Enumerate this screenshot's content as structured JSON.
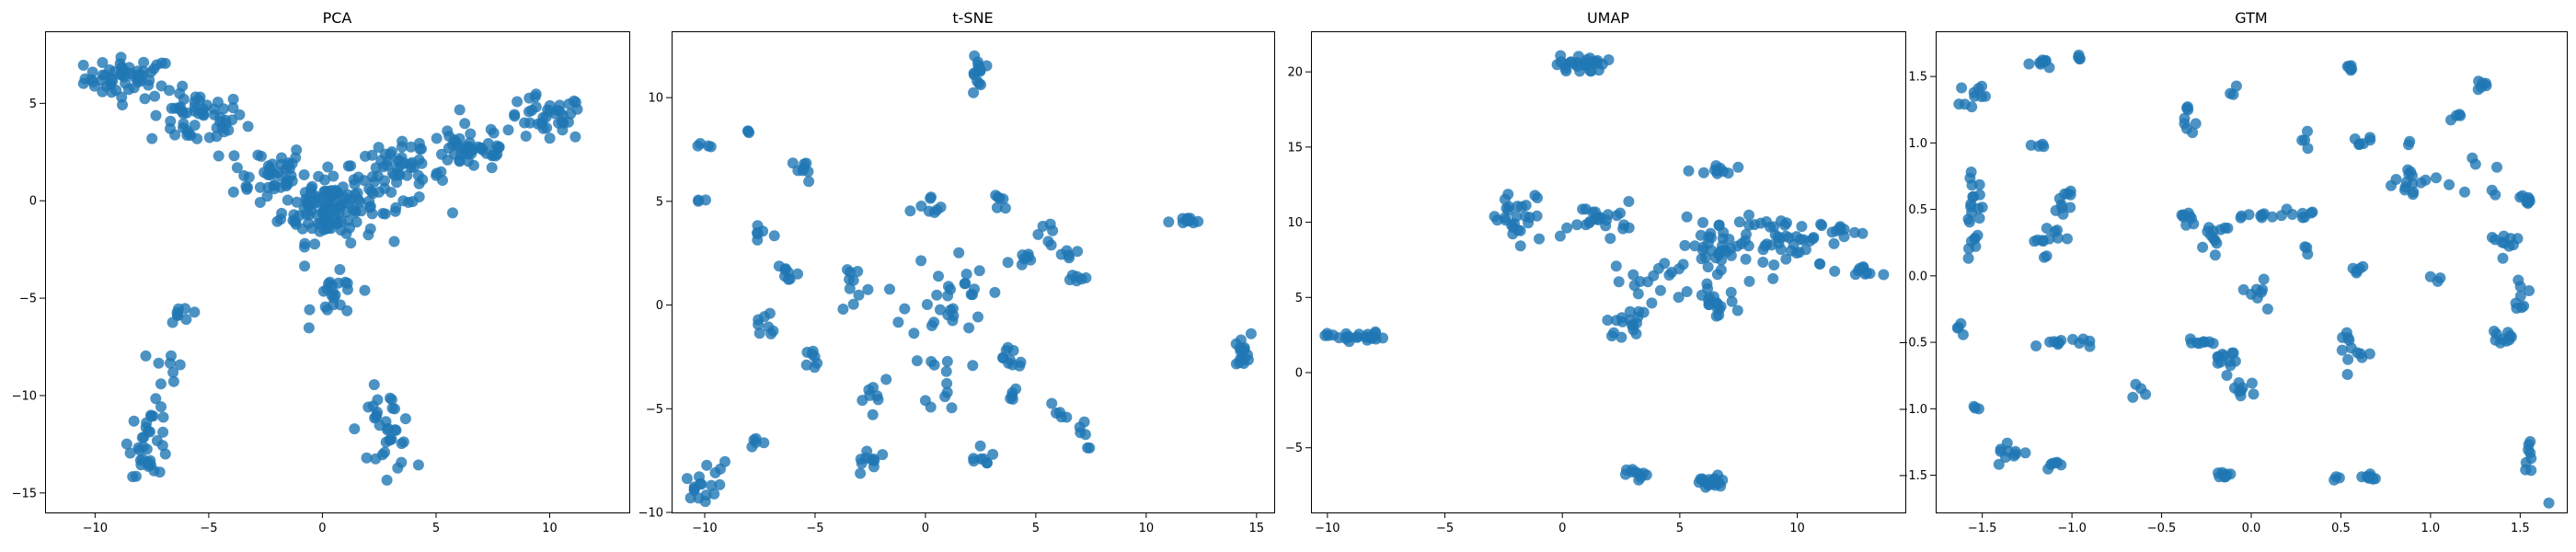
{
  "figure": {
    "point_color": "#1f77b4",
    "point_opacity": 0.8
  },
  "chart_data": [
    {
      "type": "scatter",
      "title": "PCA",
      "xlim": [
        -12.2,
        13.5
      ],
      "ylim": [
        -16.0,
        8.7
      ],
      "xticks": [
        -10,
        -5,
        0,
        5,
        10
      ],
      "yticks": [
        -15,
        -10,
        -5,
        0,
        5
      ],
      "clusters": [
        {
          "cx": -8.5,
          "cy": 6.3,
          "sx": 1.3,
          "sy": 0.7,
          "n": 55
        },
        {
          "cx": -5.5,
          "cy": 4.2,
          "sx": 1.4,
          "sy": 0.9,
          "n": 55
        },
        {
          "cx": -2.5,
          "cy": 1.5,
          "sx": 1.2,
          "sy": 1.0,
          "n": 40
        },
        {
          "cx": 0.3,
          "cy": -0.3,
          "sx": 1.4,
          "sy": 1.2,
          "n": 130
        },
        {
          "cx": 3.2,
          "cy": 1.3,
          "sx": 1.5,
          "sy": 1.0,
          "n": 60
        },
        {
          "cx": 6.5,
          "cy": 2.7,
          "sx": 1.4,
          "sy": 0.8,
          "n": 50
        },
        {
          "cx": 9.8,
          "cy": 4.2,
          "sx": 1.2,
          "sy": 0.8,
          "n": 40
        },
        {
          "cx": 0.6,
          "cy": -5.0,
          "sx": 0.7,
          "sy": 0.8,
          "n": 22
        },
        {
          "cx": -6.0,
          "cy": -5.8,
          "sx": 0.5,
          "sy": 0.6,
          "n": 8
        },
        {
          "cx": -6.7,
          "cy": -8.5,
          "sx": 0.5,
          "sy": 0.7,
          "n": 8
        },
        {
          "cx": -7.6,
          "cy": -12.3,
          "sx": 0.6,
          "sy": 1.2,
          "n": 35
        },
        {
          "cx": 2.8,
          "cy": -11.8,
          "sx": 0.8,
          "sy": 1.4,
          "n": 35
        }
      ]
    },
    {
      "type": "scatter",
      "title": "t-SNE",
      "xlim": [
        -11.5,
        15.8
      ],
      "ylim": [
        -10.0,
        13.2
      ],
      "xticks": [
        -10,
        -5,
        0,
        5,
        10,
        15
      ],
      "yticks": [
        -10,
        -5,
        0,
        5,
        10
      ],
      "clusters": [
        {
          "cx": 2.3,
          "cy": 11.0,
          "sx": 0.2,
          "sy": 0.9,
          "n": 14
        },
        {
          "cx": -10.2,
          "cy": -8.8,
          "sx": 0.5,
          "sy": 0.4,
          "n": 14
        },
        {
          "cx": 14.3,
          "cy": -2.3,
          "sx": 0.3,
          "sy": 0.6,
          "n": 16
        },
        {
          "cx": 11.8,
          "cy": 4.0,
          "sx": 0.5,
          "sy": 0.15,
          "n": 10
        },
        {
          "cx": -8.0,
          "cy": 8.3,
          "sx": 0.1,
          "sy": 0.1,
          "n": 3
        },
        {
          "cx": -10.0,
          "cy": 7.7,
          "sx": 0.2,
          "sy": 0.1,
          "n": 4
        },
        {
          "cx": -10.2,
          "cy": 5.0,
          "sx": 0.2,
          "sy": 0.1,
          "n": 3
        },
        {
          "cx": -5.5,
          "cy": 6.5,
          "sx": 0.4,
          "sy": 0.4,
          "n": 8
        },
        {
          "cx": -7.5,
          "cy": 3.5,
          "sx": 0.5,
          "sy": 0.5,
          "n": 6
        },
        {
          "cx": -6.3,
          "cy": 1.5,
          "sx": 0.4,
          "sy": 0.6,
          "n": 8
        },
        {
          "cx": -7.2,
          "cy": -1.0,
          "sx": 0.5,
          "sy": 0.6,
          "n": 8
        },
        {
          "cx": -5.0,
          "cy": -2.6,
          "sx": 0.3,
          "sy": 0.4,
          "n": 7
        },
        {
          "cx": -7.8,
          "cy": -6.5,
          "sx": 0.3,
          "sy": 0.3,
          "n": 5
        },
        {
          "cx": -3.2,
          "cy": 1.0,
          "sx": 0.5,
          "sy": 1.0,
          "n": 10
        },
        {
          "cx": -2.3,
          "cy": -4.0,
          "sx": 0.6,
          "sy": 0.6,
          "n": 8
        },
        {
          "cx": -2.5,
          "cy": -7.5,
          "sx": 0.5,
          "sy": 0.5,
          "n": 10
        },
        {
          "cx": 0.3,
          "cy": 4.5,
          "sx": 0.7,
          "sy": 0.5,
          "n": 8
        },
        {
          "cx": 1.0,
          "cy": 0.5,
          "sx": 1.2,
          "sy": 1.5,
          "n": 30
        },
        {
          "cx": 1.0,
          "cy": -3.5,
          "sx": 0.7,
          "sy": 1.0,
          "n": 12
        },
        {
          "cx": 2.5,
          "cy": -7.0,
          "sx": 0.4,
          "sy": 0.6,
          "n": 8
        },
        {
          "cx": 3.3,
          "cy": 4.8,
          "sx": 0.3,
          "sy": 0.5,
          "n": 6
        },
        {
          "cx": 4.2,
          "cy": 2.2,
          "sx": 0.6,
          "sy": 0.3,
          "n": 7
        },
        {
          "cx": 3.8,
          "cy": -2.5,
          "sx": 0.6,
          "sy": 0.6,
          "n": 10
        },
        {
          "cx": 3.9,
          "cy": -4.4,
          "sx": 0.4,
          "sy": 0.2,
          "n": 5
        },
        {
          "cx": 5.3,
          "cy": 3.5,
          "sx": 0.3,
          "sy": 0.3,
          "n": 5
        },
        {
          "cx": 6.0,
          "cy": 2.5,
          "sx": 0.5,
          "sy": 0.3,
          "n": 6
        },
        {
          "cx": 6.8,
          "cy": 1.2,
          "sx": 0.4,
          "sy": 0.3,
          "n": 6
        },
        {
          "cx": 6.0,
          "cy": -5.2,
          "sx": 0.3,
          "sy": 0.4,
          "n": 5
        },
        {
          "cx": 7.1,
          "cy": -6.2,
          "sx": 0.3,
          "sy": 0.5,
          "n": 6
        },
        {
          "cx": -9.5,
          "cy": -7.8,
          "sx": 0.3,
          "sy": 0.3,
          "n": 4
        }
      ]
    },
    {
      "type": "scatter",
      "title": "UMAP",
      "xlim": [
        -10.7,
        14.6
      ],
      "ylim": [
        -9.3,
        22.7
      ],
      "xticks": [
        -10,
        -5,
        0,
        5,
        10
      ],
      "yticks": [
        -5,
        0,
        5,
        10,
        15,
        20
      ],
      "clusters": [
        {
          "cx": 0.8,
          "cy": 20.5,
          "sx": 0.7,
          "sy": 0.4,
          "n": 28
        },
        {
          "cx": -8.8,
          "cy": 2.4,
          "sx": 0.8,
          "sy": 0.2,
          "n": 24
        },
        {
          "cx": 6.3,
          "cy": -7.3,
          "sx": 0.5,
          "sy": 0.3,
          "n": 22
        },
        {
          "cx": 3.2,
          "cy": -6.8,
          "sx": 0.3,
          "sy": 0.3,
          "n": 10
        },
        {
          "cx": -1.8,
          "cy": 10.0,
          "sx": 1.0,
          "sy": 1.3,
          "n": 28
        },
        {
          "cx": 1.7,
          "cy": 10.3,
          "sx": 0.9,
          "sy": 0.7,
          "n": 24
        },
        {
          "cx": 4.0,
          "cy": 6.0,
          "sx": 1.2,
          "sy": 1.2,
          "n": 20
        },
        {
          "cx": 2.8,
          "cy": 3.3,
          "sx": 0.6,
          "sy": 0.6,
          "n": 16
        },
        {
          "cx": 6.5,
          "cy": 4.6,
          "sx": 0.6,
          "sy": 0.6,
          "n": 16
        },
        {
          "cx": 6.5,
          "cy": 13.3,
          "sx": 0.5,
          "sy": 0.4,
          "n": 10
        },
        {
          "cx": 6.5,
          "cy": 8.5,
          "sx": 1.0,
          "sy": 1.1,
          "n": 34
        },
        {
          "cx": 9.6,
          "cy": 8.6,
          "sx": 1.6,
          "sy": 1.2,
          "n": 48
        },
        {
          "cx": 13.0,
          "cy": 6.7,
          "sx": 0.5,
          "sy": 0.3,
          "n": 10
        },
        {
          "cx": 11.8,
          "cy": 9.5,
          "sx": 0.5,
          "sy": 0.3,
          "n": 10
        }
      ]
    },
    {
      "type": "scatter",
      "title": "GTM",
      "xlim": [
        -1.76,
        1.76
      ],
      "ylim": [
        -1.78,
        1.84
      ],
      "xticks": [
        -1.5,
        -1.0,
        -0.5,
        0.0,
        0.5,
        1.0,
        1.5
      ],
      "xticklabels": [
        "−1.5",
        "−1.0",
        "−0.5",
        "0.0",
        "0.5",
        "1.0",
        "1.5"
      ],
      "yticks": [
        -1.5,
        -1.0,
        -0.5,
        0.0,
        0.5,
        1.0,
        1.5
      ],
      "yticklabels": [
        "−1.5",
        "−1.0",
        "−0.5",
        "0.0",
        "0.5",
        "1.0",
        "1.5"
      ],
      "clusters": [
        {
          "cx": -1.55,
          "cy": 1.37,
          "sx": 0.05,
          "sy": 0.06,
          "n": 10
        },
        {
          "cx": -1.55,
          "cy": 0.45,
          "sx": 0.04,
          "sy": 0.2,
          "n": 22
        },
        {
          "cx": -1.62,
          "cy": -0.38,
          "sx": 0.02,
          "sy": 0.05,
          "n": 4
        },
        {
          "cx": -1.52,
          "cy": -1.0,
          "sx": 0.02,
          "sy": 0.02,
          "n": 3
        },
        {
          "cx": -1.35,
          "cy": -1.33,
          "sx": 0.06,
          "sy": 0.04,
          "n": 10
        },
        {
          "cx": -1.1,
          "cy": -1.42,
          "sx": 0.04,
          "sy": 0.02,
          "n": 6
        },
        {
          "cx": -1.15,
          "cy": 1.6,
          "sx": 0.05,
          "sy": 0.03,
          "n": 8
        },
        {
          "cx": -0.95,
          "cy": 1.64,
          "sx": 0.03,
          "sy": 0.02,
          "n": 4
        },
        {
          "cx": -1.2,
          "cy": 0.97,
          "sx": 0.03,
          "sy": 0.02,
          "n": 4
        },
        {
          "cx": -1.15,
          "cy": 0.3,
          "sx": 0.06,
          "sy": 0.09,
          "n": 12
        },
        {
          "cx": -1.05,
          "cy": 0.55,
          "sx": 0.05,
          "sy": 0.08,
          "n": 10
        },
        {
          "cx": -1.05,
          "cy": -0.5,
          "sx": 0.1,
          "sy": 0.03,
          "n": 12
        },
        {
          "cx": -0.62,
          "cy": -0.9,
          "sx": 0.03,
          "sy": 0.05,
          "n": 4
        },
        {
          "cx": -0.35,
          "cy": 1.2,
          "sx": 0.02,
          "sy": 0.1,
          "n": 8
        },
        {
          "cx": -0.35,
          "cy": 0.42,
          "sx": 0.05,
          "sy": 0.05,
          "n": 8
        },
        {
          "cx": -0.3,
          "cy": -0.5,
          "sx": 0.05,
          "sy": 0.03,
          "n": 8
        },
        {
          "cx": -0.1,
          "cy": 1.35,
          "sx": 0.02,
          "sy": 0.04,
          "n": 3
        },
        {
          "cx": -0.2,
          "cy": 0.3,
          "sx": 0.08,
          "sy": 0.08,
          "n": 12
        },
        {
          "cx": -0.15,
          "cy": -0.6,
          "sx": 0.05,
          "sy": 0.08,
          "n": 12
        },
        {
          "cx": -0.05,
          "cy": -0.85,
          "sx": 0.05,
          "sy": 0.05,
          "n": 8
        },
        {
          "cx": -0.15,
          "cy": -1.51,
          "sx": 0.04,
          "sy": 0.015,
          "n": 8
        },
        {
          "cx": 0.05,
          "cy": -0.1,
          "sx": 0.05,
          "sy": 0.08,
          "n": 8
        },
        {
          "cx": 0.1,
          "cy": 0.45,
          "sx": 0.08,
          "sy": 0.03,
          "n": 10
        },
        {
          "cx": 0.3,
          "cy": 0.45,
          "sx": 0.06,
          "sy": 0.04,
          "n": 6
        },
        {
          "cx": 0.3,
          "cy": 1.0,
          "sx": 0.02,
          "sy": 0.04,
          "n": 4
        },
        {
          "cx": 0.3,
          "cy": 0.2,
          "sx": 0.02,
          "sy": 0.04,
          "n": 3
        },
        {
          "cx": 0.48,
          "cy": -1.52,
          "sx": 0.02,
          "sy": 0.015,
          "n": 3
        },
        {
          "cx": 0.55,
          "cy": 1.55,
          "sx": 0.02,
          "sy": 0.04,
          "n": 6
        },
        {
          "cx": 0.6,
          "cy": 1.0,
          "sx": 0.05,
          "sy": 0.03,
          "n": 6
        },
        {
          "cx": 0.6,
          "cy": 0.05,
          "sx": 0.03,
          "sy": 0.05,
          "n": 5
        },
        {
          "cx": 0.55,
          "cy": -0.55,
          "sx": 0.05,
          "sy": 0.12,
          "n": 12
        },
        {
          "cx": 0.65,
          "cy": -1.52,
          "sx": 0.06,
          "sy": 0.015,
          "n": 8
        },
        {
          "cx": 0.9,
          "cy": 0.7,
          "sx": 0.12,
          "sy": 0.1,
          "n": 16
        },
        {
          "cx": 0.9,
          "cy": 1.0,
          "sx": 0.02,
          "sy": 0.02,
          "n": 2
        },
        {
          "cx": 1.05,
          "cy": 0.0,
          "sx": 0.03,
          "sy": 0.04,
          "n": 3
        },
        {
          "cx": 1.15,
          "cy": 1.2,
          "sx": 0.04,
          "sy": 0.04,
          "n": 4
        },
        {
          "cx": 1.28,
          "cy": 1.43,
          "sx": 0.02,
          "sy": 0.03,
          "n": 6
        },
        {
          "cx": 1.3,
          "cy": 0.7,
          "sx": 0.06,
          "sy": 0.1,
          "n": 6
        },
        {
          "cx": 1.4,
          "cy": 0.25,
          "sx": 0.06,
          "sy": 0.07,
          "n": 10
        },
        {
          "cx": 1.5,
          "cy": -0.15,
          "sx": 0.03,
          "sy": 0.06,
          "n": 8
        },
        {
          "cx": 1.4,
          "cy": -0.48,
          "sx": 0.05,
          "sy": 0.05,
          "n": 10
        },
        {
          "cx": 1.55,
          "cy": 0.6,
          "sx": 0.05,
          "sy": 0.05,
          "n": 8
        },
        {
          "cx": 1.55,
          "cy": -1.35,
          "sx": 0.02,
          "sy": 0.1,
          "n": 8
        },
        {
          "cx": 1.68,
          "cy": -1.7,
          "sx": 0.01,
          "sy": 0.01,
          "n": 1
        }
      ]
    }
  ]
}
